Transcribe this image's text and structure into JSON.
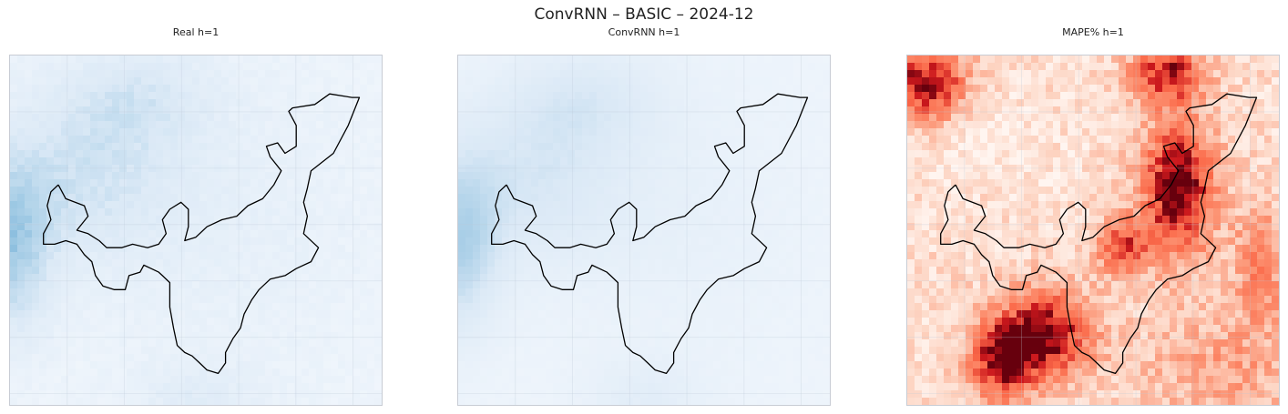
{
  "figure": {
    "title": "ConvRNN – BASIC – 2024-12"
  },
  "chart_data": [
    {
      "type": "heatmap",
      "title": "Real h=1",
      "colormap": "Blues",
      "grid_shape": [
        48,
        51
      ],
      "has_boundary_outline": true,
      "gridlines": true,
      "pattern": "blue-intensity field darkest along west edge and northwest, light elsewhere"
    },
    {
      "type": "heatmap",
      "title": "ConvRNN h=1",
      "colormap": "Blues",
      "grid_shape": [
        48,
        51
      ],
      "has_boundary_outline": true,
      "gridlines": true,
      "pattern": "smoothed version of the real field, darkest at west edge"
    },
    {
      "type": "heatmap",
      "title": "MAPE% h=1",
      "colormap": "Reds",
      "grid_shape": [
        48,
        51
      ],
      "has_boundary_outline": true,
      "gridlines": true,
      "pattern": "high error band from north-east down through centre to south-west, hotspot in top-left corner"
    }
  ],
  "colors": {
    "blues_low": "#f4f8fd",
    "blues_high": "#5aa3d0",
    "reds_low": "#fff5f0",
    "reds_mid": "#fb6a4a",
    "reds_high": "#67000d",
    "outline": "#000000",
    "frame": "#c8ccd4"
  }
}
